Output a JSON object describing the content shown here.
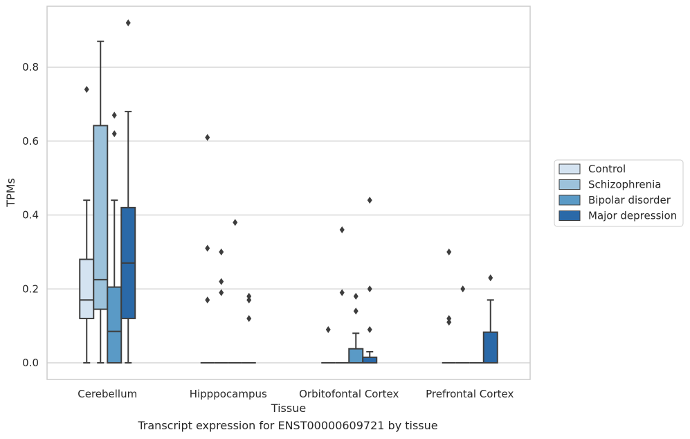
{
  "caption": "Transcript expression for ENST00000609721 by tissue",
  "chart_data": {
    "type": "box",
    "xlabel": "Tissue",
    "ylabel": "TPMs",
    "ylim": [
      -0.045,
      0.965
    ],
    "yticks": [
      0.0,
      0.2,
      0.4,
      0.6,
      0.8
    ],
    "ytick_labels": [
      "0.0",
      "0.2",
      "0.4",
      "0.6",
      "0.8"
    ],
    "grid": "horizontal",
    "legend_position": "right",
    "categories": [
      "Cerebellum",
      "Hipppocampus",
      "Orbitofontal Cortex",
      "Prefrontal Cortex"
    ],
    "series": [
      {
        "name": "Control",
        "color": "#d4e3f1",
        "boxes": [
          {
            "whislo": 0.0,
            "q1": 0.12,
            "med": 0.17,
            "q3": 0.28,
            "whishi": 0.44,
            "fliers": [
              0.74
            ]
          },
          {
            "whislo": 0.0,
            "q1": 0.0,
            "med": 0.0,
            "q3": 0.0,
            "whishi": 0.0,
            "fliers": [
              0.17,
              0.31,
              0.61
            ]
          },
          {
            "whislo": 0.0,
            "q1": 0.0,
            "med": 0.0,
            "q3": 0.0,
            "whishi": 0.0,
            "fliers": [
              0.09
            ]
          },
          {
            "whislo": 0.0,
            "q1": 0.0,
            "med": 0.0,
            "q3": 0.0,
            "whishi": 0.0,
            "fliers": [
              0.11,
              0.12,
              0.3
            ]
          }
        ]
      },
      {
        "name": "Schizophrenia",
        "color": "#9cc2db",
        "boxes": [
          {
            "whislo": 0.0,
            "q1": 0.145,
            "med": 0.225,
            "q3": 0.642,
            "whishi": 0.87,
            "fliers": []
          },
          {
            "whislo": 0.0,
            "q1": 0.0,
            "med": 0.0,
            "q3": 0.0,
            "whishi": 0.0,
            "fliers": [
              0.19,
              0.22,
              0.3
            ]
          },
          {
            "whislo": 0.0,
            "q1": 0.0,
            "med": 0.0,
            "q3": 0.0,
            "whishi": 0.0,
            "fliers": [
              0.19,
              0.36
            ]
          },
          {
            "whislo": 0.0,
            "q1": 0.0,
            "med": 0.0,
            "q3": 0.0,
            "whishi": 0.0,
            "fliers": [
              0.2
            ]
          }
        ]
      },
      {
        "name": "Bipolar disorder",
        "color": "#5a9ac6",
        "boxes": [
          {
            "whislo": 0.0,
            "q1": 0.0,
            "med": 0.085,
            "q3": 0.205,
            "whishi": 0.44,
            "fliers": [
              0.62,
              0.67
            ]
          },
          {
            "whislo": 0.0,
            "q1": 0.0,
            "med": 0.0,
            "q3": 0.0,
            "whishi": 0.0,
            "fliers": [
              0.38
            ]
          },
          {
            "whislo": 0.0,
            "q1": 0.0,
            "med": 0.0,
            "q3": 0.038,
            "whishi": 0.08,
            "fliers": [
              0.14,
              0.18
            ]
          },
          {
            "whislo": 0.0,
            "q1": 0.0,
            "med": 0.0,
            "q3": 0.0,
            "whishi": 0.0,
            "fliers": []
          }
        ]
      },
      {
        "name": "Major depression",
        "color": "#2a69a8",
        "boxes": [
          {
            "whislo": 0.0,
            "q1": 0.12,
            "med": 0.27,
            "q3": 0.42,
            "whishi": 0.68,
            "fliers": [
              0.92
            ]
          },
          {
            "whislo": 0.0,
            "q1": 0.0,
            "med": 0.0,
            "q3": 0.0,
            "whishi": 0.0,
            "fliers": [
              0.12,
              0.17,
              0.18
            ]
          },
          {
            "whislo": 0.0,
            "q1": 0.0,
            "med": 0.0,
            "q3": 0.015,
            "whishi": 0.03,
            "fliers": [
              0.09,
              0.2,
              0.44
            ]
          },
          {
            "whislo": 0.0,
            "q1": 0.0,
            "med": 0.0,
            "q3": 0.083,
            "whishi": 0.17,
            "fliers": [
              0.23
            ]
          }
        ]
      }
    ]
  }
}
